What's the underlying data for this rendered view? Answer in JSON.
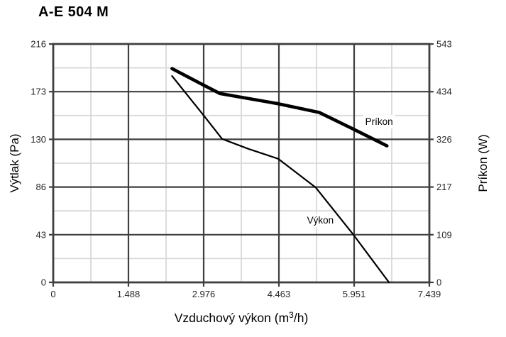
{
  "page": {
    "title": "A-E 504 M"
  },
  "chart_data": {
    "type": "line",
    "title": "A-E 504 M",
    "xlabel": "Vzduchový výkon (m³/h)",
    "ylabel_left": "Výtlak (Pa)",
    "ylabel_right": "Príkon (W)",
    "x_range": [
      0,
      7.439
    ],
    "y_left_range": [
      0,
      216
    ],
    "y_right_range": [
      0,
      543
    ],
    "x_ticks": {
      "values": [
        0,
        1.488,
        2.976,
        4.463,
        5.951,
        7.439
      ],
      "labels": [
        "0",
        "1.488",
        "2.976",
        "4.463",
        "5.951",
        "7.439"
      ]
    },
    "y_left_ticks": {
      "values": [
        0,
        43,
        86,
        130,
        173,
        216
      ],
      "labels": [
        "0",
        "43",
        "86",
        "130",
        "173",
        "216"
      ]
    },
    "y_right_ticks": {
      "values": [
        0,
        109,
        217,
        326,
        434,
        543
      ],
      "labels": [
        "0",
        "109",
        "217",
        "326",
        "434",
        "543"
      ]
    },
    "grid": {
      "major": true,
      "minor": "midpoints",
      "legend": "inline-labels"
    },
    "series": [
      {
        "name": "Výkon",
        "axis": "left",
        "style": "thin",
        "points": [
          [
            2.35,
            187
          ],
          [
            2.98,
            151
          ],
          [
            3.34,
            130
          ],
          [
            3.86,
            121
          ],
          [
            4.45,
            112
          ],
          [
            5.19,
            86
          ],
          [
            5.94,
            43
          ],
          [
            6.64,
            0
          ]
        ]
      },
      {
        "name": "Príkon",
        "axis": "right",
        "style": "thick",
        "points": [
          [
            2.35,
            487
          ],
          [
            2.98,
            449
          ],
          [
            3.3,
            430
          ],
          [
            4.45,
            407
          ],
          [
            5.26,
            387
          ],
          [
            5.92,
            350
          ],
          [
            6.6,
            311
          ]
        ]
      }
    ],
    "annotations": [
      {
        "text": "Príkon",
        "axis": "right",
        "x": 6.17,
        "y": 365
      },
      {
        "text": "Výkon",
        "axis": "left",
        "x": 5.02,
        "y": 56
      }
    ],
    "colors": {
      "line": "#000000",
      "major_grid": "#3f3f3f",
      "minor_grid": "#d9d9d9",
      "border": "#3f3f3f",
      "tick_text": "#262626",
      "title_text": "#000000"
    }
  }
}
